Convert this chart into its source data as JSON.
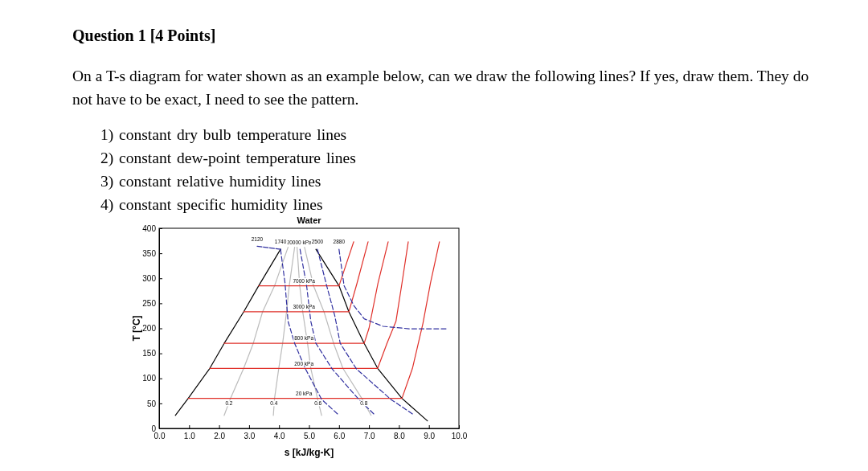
{
  "chart_data": {
    "type": "line",
    "title": "Water",
    "xlabel": "s [kJ/kg-K]",
    "ylabel": "T [°C]",
    "xlim": [
      0,
      10
    ],
    "ylim": [
      0,
      400
    ],
    "xticks": [
      {
        "value": 0,
        "label": "0.0"
      },
      {
        "value": 1,
        "label": "1.0"
      },
      {
        "value": 2,
        "label": "2.0"
      },
      {
        "value": 3,
        "label": "3.0"
      },
      {
        "value": 4,
        "label": "4.0"
      },
      {
        "value": 5,
        "label": "5.0"
      },
      {
        "value": 6,
        "label": "6.0"
      },
      {
        "value": 7,
        "label": "7.0"
      },
      {
        "value": 8,
        "label": "8.0"
      },
      {
        "value": 9,
        "label": "9.0"
      },
      {
        "value": 10,
        "label": "10.0"
      }
    ],
    "yticks": [
      0,
      50,
      100,
      150,
      200,
      250,
      300,
      350,
      400
    ],
    "series": [
      {
        "color": "#000000",
        "line_style": "solid",
        "x": [
          0.54,
          0.97,
          1.69,
          2.17,
          2.82,
          3.32,
          4.05
        ],
        "values": [
          26,
          60,
          120,
          170,
          233,
          285,
          358
        ]
      },
      {
        "color": "#000000",
        "line_style": "solid",
        "x": [
          5.23,
          6.0,
          6.33,
          6.84,
          7.29,
          8.1,
          8.95
        ],
        "values": [
          358,
          285,
          233,
          170,
          120,
          60,
          15
        ]
      },
      {
        "color": "#bbbbbb",
        "line_style": "solid",
        "x": [
          2.17,
          2.38,
          2.82,
          3.14,
          3.45,
          3.85,
          4.3
        ],
        "values": [
          26,
          60,
          120,
          170,
          233,
          285,
          362
        ]
      },
      {
        "color": "#bbbbbb",
        "line_style": "solid",
        "x": [
          3.81,
          3.85,
          3.99,
          4.12,
          4.25,
          4.34,
          4.52
        ],
        "values": [
          26,
          60,
          120,
          170,
          233,
          285,
          362
        ]
      },
      {
        "color": "#bbbbbb",
        "line_style": "solid",
        "x": [
          5.42,
          5.28,
          5.06,
          4.95,
          4.79,
          4.69,
          4.6
        ],
        "values": [
          26,
          60,
          120,
          170,
          233,
          285,
          362
        ]
      },
      {
        "color": "#bbbbbb",
        "line_style": "solid",
        "x": [
          7.07,
          6.76,
          6.13,
          5.82,
          5.5,
          5.15,
          4.85
        ],
        "values": [
          26,
          60,
          120,
          170,
          233,
          285,
          362
        ]
      },
      {
        "color": "#e0302a",
        "line_style": "solid",
        "x": [
          0.97,
          8.1,
          8.45,
          8.8,
          9.05,
          9.35
        ],
        "values": [
          60,
          60,
          120,
          210,
          290,
          373
        ]
      },
      {
        "color": "#e0302a",
        "line_style": "solid",
        "x": [
          1.69,
          7.29,
          7.6,
          7.9,
          8.1,
          8.31
        ],
        "values": [
          120,
          120,
          170,
          214,
          290,
          373
        ]
      },
      {
        "color": "#e0302a",
        "line_style": "solid",
        "x": [
          2.17,
          6.84,
          7.0,
          7.3,
          7.64
        ],
        "values": [
          170,
          170,
          200,
          290,
          373
        ]
      },
      {
        "color": "#e0302a",
        "line_style": "solid",
        "x": [
          2.82,
          6.33,
          6.6,
          6.97
        ],
        "values": [
          233,
          233,
          290,
          373
        ]
      },
      {
        "color": "#e0302a",
        "line_style": "solid",
        "x": [
          3.32,
          6.0,
          6.25,
          6.49
        ],
        "values": [
          285,
          285,
          330,
          373
        ]
      },
      {
        "color": "#3030a0",
        "line_style": "dashed",
        "x": [
          3.27,
          4.05
        ],
        "values": [
          364,
          358
        ]
      },
      {
        "color": "#3030a0",
        "line_style": "dashed",
        "x": [
          4.05,
          4.2,
          4.3,
          4.52,
          4.88,
          5.42,
          5.95
        ],
        "values": [
          358,
          290,
          214,
          170,
          119,
          58,
          29
        ]
      },
      {
        "color": "#3030a0",
        "line_style": "dashed",
        "x": [
          4.7,
          4.92,
          5.06,
          5.23,
          5.77,
          6.66,
          7.16
        ],
        "values": [
          358,
          285,
          214,
          170,
          119,
          58,
          29
        ]
      },
      {
        "color": "#3030a0",
        "line_style": "dashed",
        "x": [
          5.28,
          5.59,
          5.86,
          6.04,
          6.58,
          7.73,
          8.45
        ],
        "values": [
          358,
          285,
          225,
          170,
          119,
          58,
          29
        ]
      },
      {
        "color": "#3030a0",
        "line_style": "dashed",
        "x": [
          6.0,
          6.17,
          6.49,
          6.84,
          7.47,
          8.36,
          9.57
        ],
        "values": [
          358,
          285,
          246,
          219,
          204,
          199,
          199
        ]
      }
    ],
    "annotations": [
      "Question 1 [4 Points]",
      "On a T-s diagram for water shown as an example below, can we draw the following lines? If yes, draw them. They do not have to be exact, I need to see the pattern.",
      "1) constant dry bulb temperature lines",
      "2) constant dew-point temperature lines",
      "3) constant relative humidity lines",
      "4) constant specific humidity lines",
      {
        "text": "7000 kPa",
        "x": 4.83,
        "y": 285
      },
      {
        "text": "3000 kPa",
        "x": 4.83,
        "y": 233
      },
      {
        "text": "800 kPa",
        "x": 4.83,
        "y": 170
      },
      {
        "text": "200 kPa",
        "x": 4.83,
        "y": 120
      },
      {
        "text": "20 kPa",
        "x": 4.83,
        "y": 60
      },
      {
        "text": "20000 kPa",
        "x": 4.67,
        "y": 362
      },
      {
        "text": "0.2",
        "x": 2.33,
        "y": 40
      },
      {
        "text": "0.4",
        "x": 3.83,
        "y": 40
      },
      {
        "text": "0.6",
        "x": 5.3,
        "y": 40
      },
      {
        "text": "0.8",
        "x": 6.83,
        "y": 40
      },
      {
        "text": "2120",
        "x": 3.27,
        "y": 364
      },
      {
        "text": "1740",
        "x": 4.05,
        "y": 358
      },
      {
        "text": "2500",
        "x": 5.28,
        "y": 358
      },
      {
        "text": "2880",
        "x": 6.0,
        "y": 358
      }
    ]
  }
}
